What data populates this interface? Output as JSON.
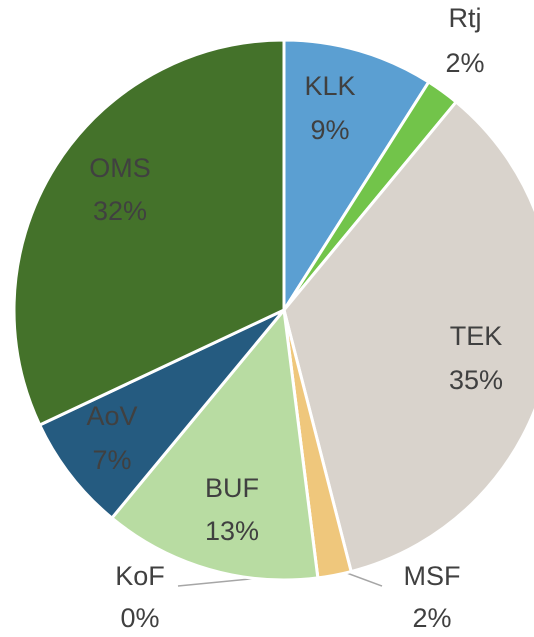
{
  "chart_data": {
    "type": "pie",
    "categories": [
      "KLK",
      "Rtj",
      "TEK",
      "MSF",
      "KoF",
      "BUF",
      "AoV",
      "OMS"
    ],
    "values": [
      9,
      2,
      35,
      2,
      0,
      13,
      7,
      32
    ],
    "value_labels": [
      "9%",
      "2%",
      "35%",
      "2%",
      "0%",
      "13%",
      "7%",
      "32%"
    ],
    "colors": [
      "#5b9fd2",
      "#72c44a",
      "#d9d3cc",
      "#efc77c",
      "#9fc9e8",
      "#b8dca2",
      "#255b80",
      "#44722a"
    ]
  }
}
